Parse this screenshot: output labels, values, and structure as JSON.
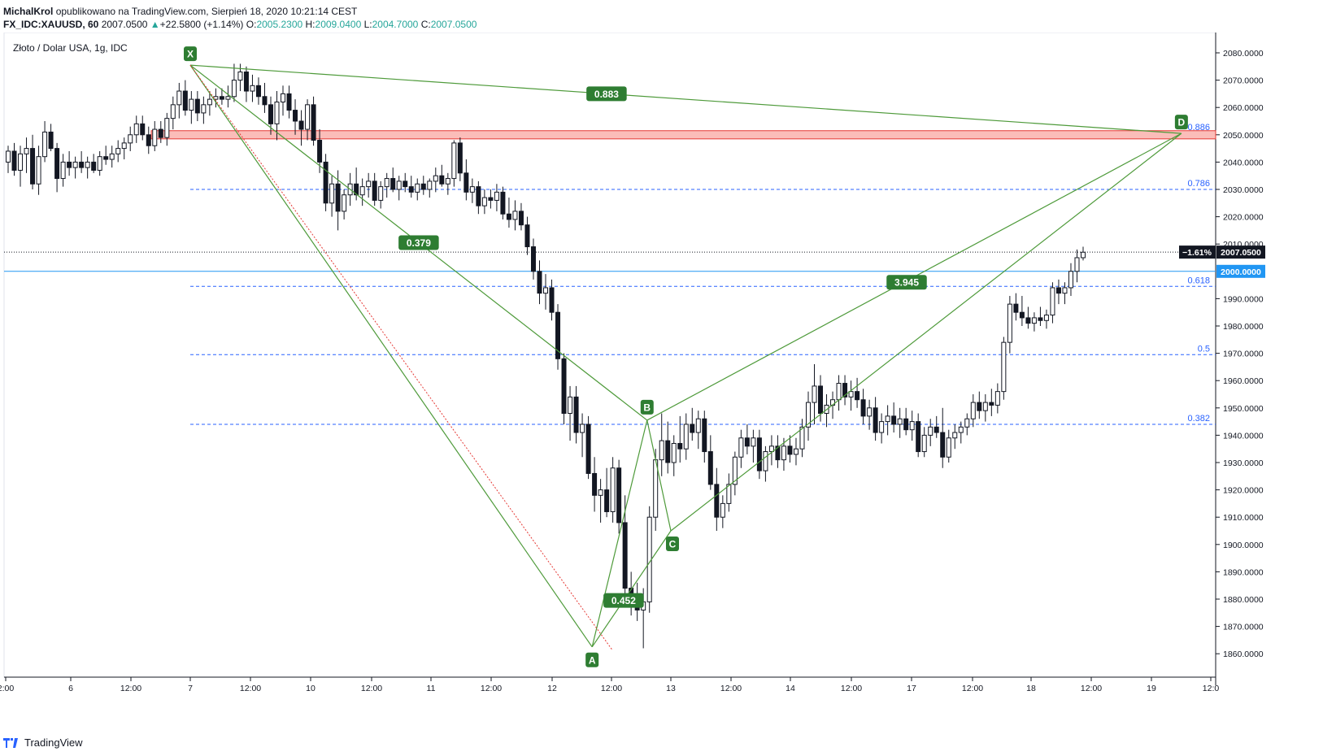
{
  "header": {
    "author": "MichalKrol",
    "published": "opublikowano na TradingView.com, Sierpień 18, 2020 10:21:14 CEST",
    "symbol": "FX_IDC:XAUUSD, 60",
    "last": "2007.0500",
    "change_arrow": "▲",
    "change": "+22.5800 (+1.14%)",
    "o_label": "O:",
    "o_value": "2005.2300",
    "h_label": "H:",
    "h_value": "2009.0400",
    "l_label": "L:",
    "l_value": "2004.7000",
    "c_label": "C:",
    "c_value": "2007.0500"
  },
  "footer": {
    "brand": "TradingView"
  },
  "chart_data": {
    "type": "candlestick",
    "title": "Złoto / Dolar USA, 1g, IDC",
    "y_range": [
      1852,
      2092
    ],
    "y_ticks": [
      "2080.0000",
      "2070.0000",
      "2060.0000",
      "2050.0000",
      "2040.0000",
      "2030.0000",
      "2020.0000",
      "2010.0000",
      "1990.0000",
      "1980.0000",
      "1970.0000",
      "1960.0000",
      "1950.0000",
      "1940.0000",
      "1930.0000",
      "1920.0000",
      "1910.0000",
      "1900.0000",
      "1890.0000",
      "1880.0000",
      "1870.0000",
      "1860.0000"
    ],
    "x_ticks": [
      "2:00",
      "6",
      "12:00",
      "7",
      "12:00",
      "10",
      "12:00",
      "11",
      "12:00",
      "12",
      "12:00",
      "13",
      "12:00",
      "14",
      "12:00",
      "17",
      "12:00",
      "18",
      "12:00",
      "19",
      "12:0"
    ],
    "price_labels": {
      "last_pct": "−1.61%",
      "last_price": "2007.0500",
      "level_price": "2000.0000"
    },
    "last_price_value": 2007.05,
    "horizontal_level": 2000.0,
    "resistance_zone": [
      2048.5,
      2051.5
    ],
    "fib_levels": [
      {
        "label": "0.886",
        "value": 2050.5
      },
      {
        "label": "0.786",
        "value": 2030.0
      },
      {
        "label": "0.618",
        "value": 1994.5
      },
      {
        "label": "0.5",
        "value": 1969.5
      },
      {
        "label": "0.382",
        "value": 1944.0
      }
    ],
    "pattern_points": [
      {
        "label": "X",
        "date": "2020-08-07 00:00",
        "value": 2075.5
      },
      {
        "label": "A",
        "date": "2020-08-12 08:00",
        "value": 1862.5
      },
      {
        "label": "B",
        "date": "2020-08-12 19:00",
        "value": 1945.5
      },
      {
        "label": "C",
        "date": "2020-08-13 00:00",
        "value": 1905.0
      },
      {
        "label": "D",
        "date": "2020-08-19 06:00",
        "value": 2050.5
      }
    ],
    "ratios": [
      {
        "label": "0.883",
        "value": 0.883
      },
      {
        "label": "0.379",
        "value": 0.379
      },
      {
        "label": "3.945",
        "value": 3.945
      },
      {
        "label": "0.452",
        "value": 0.452
      }
    ],
    "candles": [
      [
        2040,
        2046,
        2036,
        2044
      ],
      [
        2044,
        2047,
        2035,
        2037
      ],
      [
        2037,
        2046,
        2031,
        2043
      ],
      [
        2043,
        2049,
        2036,
        2045
      ],
      [
        2045,
        2050,
        2030,
        2032
      ],
      [
        2032,
        2046,
        2028,
        2042
      ],
      [
        2042,
        2055,
        2040,
        2051
      ],
      [
        2051,
        2054,
        2044,
        2045
      ],
      [
        2045,
        2047,
        2029,
        2034
      ],
      [
        2034,
        2043,
        2031,
        2040
      ],
      [
        2040,
        2044,
        2035,
        2038
      ],
      [
        2038,
        2042,
        2034,
        2040
      ],
      [
        2040,
        2044,
        2036,
        2038
      ],
      [
        2038,
        2042,
        2034,
        2040
      ],
      [
        2040,
        2043,
        2036,
        2037
      ],
      [
        2037,
        2044,
        2035,
        2042
      ],
      [
        2042,
        2046,
        2039,
        2041
      ],
      [
        2041,
        2046,
        2038,
        2043
      ],
      [
        2043,
        2048,
        2040,
        2045
      ],
      [
        2045,
        2049,
        2041,
        2047
      ],
      [
        2047,
        2053,
        2044,
        2050
      ],
      [
        2050,
        2057,
        2047,
        2054
      ],
      [
        2054,
        2057,
        2048,
        2050
      ],
      [
        2050,
        2053,
        2043,
        2046
      ],
      [
        2046,
        2055,
        2044,
        2052
      ],
      [
        2052,
        2055,
        2047,
        2049
      ],
      [
        2049,
        2058,
        2046,
        2056
      ],
      [
        2056,
        2064,
        2052,
        2061
      ],
      [
        2061,
        2069,
        2056,
        2066
      ],
      [
        2066,
        2070,
        2057,
        2059
      ],
      [
        2059,
        2066,
        2054,
        2063
      ],
      [
        2063,
        2066,
        2055,
        2058
      ],
      [
        2058,
        2064,
        2054,
        2061
      ],
      [
        2061,
        2066,
        2057,
        2063
      ],
      [
        2063,
        2067,
        2060,
        2064
      ],
      [
        2064,
        2067,
        2061,
        2063
      ],
      [
        2063,
        2068,
        2060,
        2064
      ],
      [
        2064,
        2076,
        2062,
        2070
      ],
      [
        2070,
        2076,
        2066,
        2073
      ],
      [
        2073,
        2075,
        2062,
        2066
      ],
      [
        2066,
        2072,
        2062,
        2068
      ],
      [
        2068,
        2071,
        2061,
        2064
      ],
      [
        2064,
        2069,
        2058,
        2061
      ],
      [
        2061,
        2064,
        2050,
        2054
      ],
      [
        2054,
        2066,
        2048,
        2062
      ],
      [
        2062,
        2068,
        2057,
        2065
      ],
      [
        2065,
        2068,
        2056,
        2059
      ],
      [
        2059,
        2063,
        2050,
        2055
      ],
      [
        2055,
        2059,
        2046,
        2052
      ],
      [
        2052,
        2063,
        2048,
        2061
      ],
      [
        2061,
        2064,
        2046,
        2048
      ],
      [
        2048,
        2052,
        2036,
        2040
      ],
      [
        2040,
        2043,
        2022,
        2025
      ],
      [
        2025,
        2035,
        2020,
        2032
      ],
      [
        2032,
        2037,
        2015,
        2022
      ],
      [
        2022,
        2030,
        2019,
        2028
      ],
      [
        2028,
        2036,
        2024,
        2032
      ],
      [
        2032,
        2038,
        2026,
        2028
      ],
      [
        2028,
        2034,
        2024,
        2031
      ],
      [
        2031,
        2036,
        2027,
        2033
      ],
      [
        2033,
        2036,
        2024,
        2026
      ],
      [
        2026,
        2033,
        2023,
        2031
      ],
      [
        2031,
        2036,
        2027,
        2034
      ],
      [
        2034,
        2038,
        2029,
        2030
      ],
      [
        2030,
        2035,
        2026,
        2033
      ],
      [
        2033,
        2036,
        2029,
        2031
      ],
      [
        2031,
        2035,
        2027,
        2029
      ],
      [
        2029,
        2034,
        2026,
        2032
      ],
      [
        2032,
        2035,
        2028,
        2030
      ],
      [
        2030,
        2034,
        2027,
        2033
      ],
      [
        2033,
        2038,
        2029,
        2035
      ],
      [
        2035,
        2039,
        2031,
        2032
      ],
      [
        2032,
        2036,
        2028,
        2034
      ],
      [
        2034,
        2048,
        2031,
        2047
      ],
      [
        2047,
        2049,
        2033,
        2036
      ],
      [
        2036,
        2041,
        2026,
        2029
      ],
      [
        2029,
        2034,
        2025,
        2031
      ],
      [
        2031,
        2033,
        2021,
        2024
      ],
      [
        2024,
        2030,
        2021,
        2027
      ],
      [
        2027,
        2030,
        2023,
        2026
      ],
      [
        2026,
        2032,
        2022,
        2029
      ],
      [
        2029,
        2031,
        2019,
        2021
      ],
      [
        2021,
        2027,
        2016,
        2019
      ],
      [
        2019,
        2026,
        2015,
        2022
      ],
      [
        2022,
        2025,
        2015,
        2017
      ],
      [
        2017,
        2020,
        2006,
        2009
      ],
      [
        2009,
        2012,
        1997,
        2000
      ],
      [
        2000,
        2004,
        1988,
        1992
      ],
      [
        1992,
        1999,
        1986,
        1994
      ],
      [
        1994,
        1997,
        1982,
        1985
      ],
      [
        1985,
        1988,
        1964,
        1968
      ],
      [
        1968,
        1970,
        1944,
        1948
      ],
      [
        1948,
        1958,
        1938,
        1954
      ],
      [
        1954,
        1958,
        1937,
        1941
      ],
      [
        1941,
        1948,
        1932,
        1944
      ],
      [
        1944,
        1947,
        1924,
        1926
      ],
      [
        1926,
        1932,
        1912,
        1918
      ],
      [
        1918,
        1924,
        1908,
        1920
      ],
      [
        1920,
        1928,
        1910,
        1912
      ],
      [
        1912,
        1932,
        1908,
        1928
      ],
      [
        1928,
        1931,
        1904,
        1908
      ],
      [
        1908,
        1918,
        1880,
        1884
      ],
      [
        1884,
        1890,
        1874,
        1880
      ],
      [
        1880,
        1886,
        1872,
        1876
      ],
      [
        1876,
        1884,
        1862,
        1879
      ],
      [
        1879,
        1914,
        1875,
        1910
      ],
      [
        1910,
        1935,
        1905,
        1931
      ],
      [
        1931,
        1948,
        1925,
        1938
      ],
      [
        1938,
        1945,
        1926,
        1930
      ],
      [
        1930,
        1940,
        1925,
        1937
      ],
      [
        1937,
        1947,
        1930,
        1935
      ],
      [
        1935,
        1948,
        1931,
        1944
      ],
      [
        1944,
        1950,
        1938,
        1941
      ],
      [
        1941,
        1949,
        1935,
        1946
      ],
      [
        1946,
        1949,
        1930,
        1934
      ],
      [
        1934,
        1940,
        1920,
        1922
      ],
      [
        1922,
        1928,
        1905,
        1910
      ],
      [
        1910,
        1918,
        1906,
        1915
      ],
      [
        1915,
        1926,
        1912,
        1922
      ],
      [
        1922,
        1934,
        1918,
        1932
      ],
      [
        1932,
        1942,
        1928,
        1939
      ],
      [
        1939,
        1944,
        1933,
        1936
      ],
      [
        1936,
        1942,
        1930,
        1939
      ],
      [
        1939,
        1942,
        1924,
        1927
      ],
      [
        1927,
        1936,
        1923,
        1934
      ],
      [
        1934,
        1940,
        1929,
        1936
      ],
      [
        1936,
        1940,
        1928,
        1931
      ],
      [
        1931,
        1939,
        1927,
        1936
      ],
      [
        1936,
        1940,
        1930,
        1933
      ],
      [
        1933,
        1939,
        1929,
        1935
      ],
      [
        1935,
        1946,
        1932,
        1943
      ],
      [
        1943,
        1956,
        1938,
        1952
      ],
      [
        1952,
        1966,
        1944,
        1958
      ],
      [
        1958,
        1962,
        1945,
        1948
      ],
      [
        1948,
        1955,
        1943,
        1951
      ],
      [
        1951,
        1956,
        1946,
        1953
      ],
      [
        1953,
        1962,
        1949,
        1959
      ],
      [
        1959,
        1962,
        1951,
        1954
      ],
      [
        1954,
        1960,
        1949,
        1956
      ],
      [
        1956,
        1961,
        1950,
        1953
      ],
      [
        1953,
        1957,
        1944,
        1947
      ],
      [
        1947,
        1953,
        1942,
        1950
      ],
      [
        1950,
        1954,
        1938,
        1941
      ],
      [
        1941,
        1948,
        1937,
        1945
      ],
      [
        1945,
        1951,
        1940,
        1947
      ],
      [
        1947,
        1952,
        1941,
        1944
      ],
      [
        1944,
        1950,
        1939,
        1946
      ],
      [
        1946,
        1950,
        1940,
        1942
      ],
      [
        1942,
        1949,
        1938,
        1945
      ],
      [
        1945,
        1948,
        1932,
        1934
      ],
      [
        1934,
        1943,
        1932,
        1940
      ],
      [
        1940,
        1946,
        1936,
        1943
      ],
      [
        1943,
        1947,
        1939,
        1941
      ],
      [
        1941,
        1950,
        1928,
        1932
      ],
      [
        1932,
        1942,
        1930,
        1939
      ],
      [
        1939,
        1944,
        1935,
        1941
      ],
      [
        1941,
        1945,
        1937,
        1943
      ],
      [
        1943,
        1948,
        1940,
        1946
      ],
      [
        1946,
        1955,
        1943,
        1952
      ],
      [
        1952,
        1956,
        1946,
        1949
      ],
      [
        1949,
        1955,
        1945,
        1952
      ],
      [
        1952,
        1957,
        1947,
        1951
      ],
      [
        1951,
        1959,
        1948,
        1956
      ],
      [
        1956,
        1976,
        1953,
        1974
      ],
      [
        1974,
        1991,
        1970,
        1988
      ],
      [
        1988,
        1992,
        1982,
        1985
      ],
      [
        1985,
        1991,
        1980,
        1983
      ],
      [
        1983,
        1987,
        1979,
        1981
      ],
      [
        1981,
        1985,
        1978,
        1983
      ],
      [
        1983,
        1987,
        1980,
        1982
      ],
      [
        1982,
        1986,
        1979,
        1984
      ],
      [
        1984,
        1996,
        1981,
        1994
      ],
      [
        1994,
        1997,
        1988,
        1992
      ],
      [
        1992,
        1996,
        1988,
        1994
      ],
      [
        1994,
        2003,
        1991,
        2000
      ],
      [
        2000,
        2008,
        1996,
        2005
      ],
      [
        2005,
        2009,
        2004,
        2007
      ]
    ]
  }
}
